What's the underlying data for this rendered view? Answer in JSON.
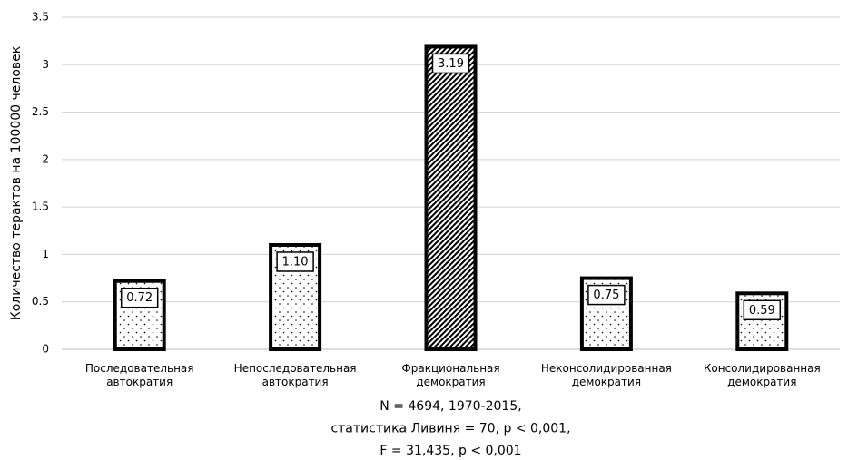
{
  "chart_data": {
    "type": "bar",
    "categories": [
      "Последовательная автократия",
      "Непоследовательная автократия",
      "Фракциональная демократия",
      "Неконсолидированная демократия",
      "Консолидированная демократия"
    ],
    "values": [
      0.72,
      1.1,
      3.19,
      0.75,
      0.59
    ],
    "value_labels": [
      "0.72",
      "1.10",
      "3.19",
      "0.75",
      "0.59"
    ],
    "patterns": [
      "dots",
      "dots",
      "hatch",
      "dots",
      "dots"
    ],
    "color": "#000000",
    "ylabel": "Количество терактов на 100000 человек",
    "xlabel": [
      "N = 4694, 1970-2015,",
      "статистика Ливиня = 70, p < 0,001,",
      "F = 31,435, p < 0,001"
    ],
    "ylim": [
      0,
      3.5
    ],
    "yticks": [
      0,
      0.5,
      1,
      1.5,
      2,
      2.5,
      3,
      3.5
    ],
    "grid": true
  }
}
